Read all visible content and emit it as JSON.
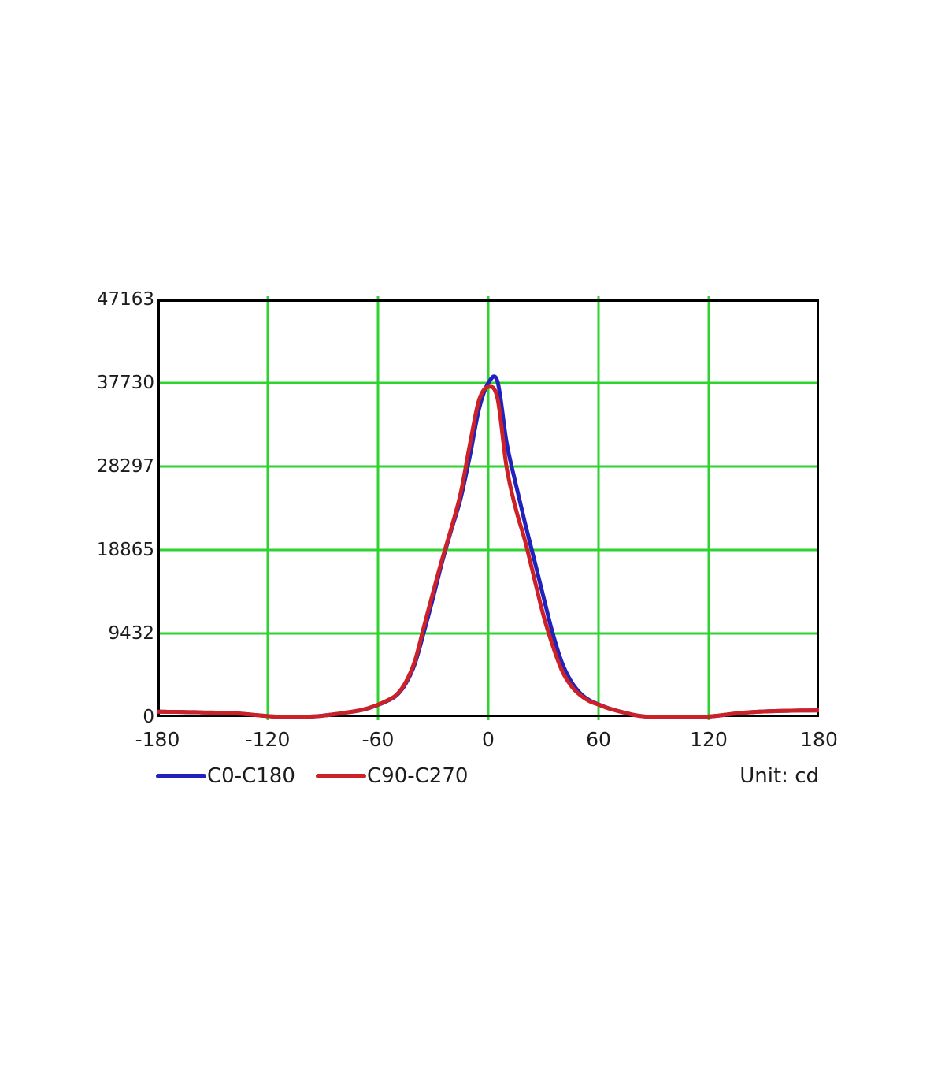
{
  "unit_label": "Unit: cd",
  "chart_data": {
    "type": "line",
    "title": "",
    "xlabel": "",
    "ylabel": "",
    "unit_label": "Unit: cd",
    "grid": true,
    "grid_color": "#2fd32f",
    "axis_color": "#000000",
    "legend_position": "bottom-left",
    "xlim": [
      -180,
      180
    ],
    "ylim": [
      0,
      47163
    ],
    "x_ticks": [
      -180,
      -120,
      -60,
      0,
      60,
      120,
      180
    ],
    "y_ticks": [
      0,
      9432,
      18865,
      28297,
      37730,
      47163
    ],
    "x": [
      -180,
      -175,
      -170,
      -165,
      -160,
      -155,
      -150,
      -145,
      -140,
      -135,
      -130,
      -125,
      -120,
      -115,
      -110,
      -105,
      -100,
      -95,
      -90,
      -85,
      -80,
      -75,
      -70,
      -65,
      -60,
      -55,
      -50,
      -45,
      -40,
      -35,
      -30,
      -25,
      -20,
      -15,
      -10,
      -5,
      0,
      5,
      10,
      15,
      20,
      25,
      30,
      35,
      40,
      45,
      50,
      55,
      60,
      65,
      70,
      75,
      80,
      85,
      90,
      95,
      100,
      105,
      110,
      115,
      120,
      125,
      130,
      135,
      140,
      145,
      150,
      155,
      160,
      165,
      170,
      175,
      180
    ],
    "series": [
      {
        "name": "C0-C180",
        "color": "#2121bd",
        "values": [
          600,
          590,
          580,
          560,
          540,
          520,
          500,
          470,
          430,
          370,
          290,
          190,
          100,
          40,
          10,
          0,
          10,
          60,
          150,
          280,
          420,
          570,
          740,
          1000,
          1370,
          1820,
          2430,
          3750,
          6000,
          9600,
          13500,
          17600,
          21200,
          24700,
          29500,
          34800,
          37700,
          37900,
          31000,
          26300,
          21900,
          17800,
          13600,
          9500,
          6200,
          4050,
          2700,
          1900,
          1430,
          1020,
          710,
          455,
          205,
          62,
          12,
          0,
          0,
          0,
          0,
          10,
          50,
          150,
          280,
          400,
          500,
          570,
          620,
          660,
          690,
          710,
          730,
          740,
          750
        ]
      },
      {
        "name": "C90-C270",
        "color": "#cc2127",
        "values": [
          600,
          590,
          580,
          560,
          540,
          520,
          500,
          470,
          430,
          370,
          290,
          190,
          100,
          40,
          10,
          0,
          10,
          60,
          150,
          280,
          420,
          570,
          750,
          1020,
          1400,
          1870,
          2500,
          3900,
          6300,
          10200,
          14100,
          17900,
          21400,
          25300,
          30800,
          35800,
          37280,
          36000,
          28200,
          23500,
          19900,
          15700,
          11500,
          8100,
          5300,
          3550,
          2480,
          1800,
          1400,
          1000,
          700,
          450,
          200,
          60,
          10,
          0,
          0,
          0,
          0,
          10,
          50,
          150,
          280,
          400,
          500,
          570,
          620,
          660,
          690,
          710,
          730,
          740,
          750
        ]
      }
    ]
  }
}
